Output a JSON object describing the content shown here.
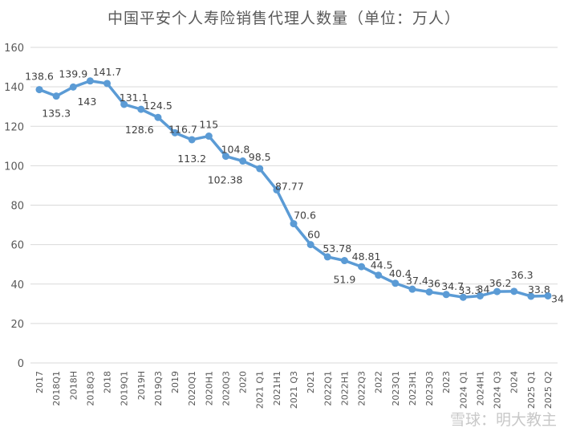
{
  "chart_data": {
    "type": "line",
    "title": "中国平安个人寿险销售代理人数量（单位：万人）",
    "xlabel": "",
    "ylabel": "",
    "ylim": [
      0,
      160
    ],
    "yticks": [
      0,
      20,
      40,
      60,
      80,
      100,
      120,
      140,
      160
    ],
    "grid": true,
    "legend": "none",
    "categories": [
      "2017",
      "2018Q1",
      "2018H",
      "2018Q3",
      "2018",
      "2019Q1",
      "2019H",
      "2019Q3",
      "2019",
      "2020Q1",
      "2020H1",
      "2020Q3",
      "2020",
      "2021 Q1",
      "2021H1",
      "2021 Q3",
      "2021",
      "2022Q1",
      "2022H1",
      "2022Q3",
      "2022",
      "2023Q1",
      "2023H1",
      "2023Q3",
      "2023",
      "2024 Q1",
      "2024H1",
      "2024 Q3",
      "2024",
      "2025 Q1",
      "2025 Q2"
    ],
    "series": [
      {
        "name": "代理人数量",
        "color": "#5b9bd5",
        "values": [
          138.6,
          135.3,
          139.9,
          143,
          141.7,
          131.1,
          128.6,
          124.5,
          116.7,
          113.2,
          115,
          104.8,
          102.38,
          98.5,
          87.77,
          70.6,
          60,
          53.78,
          51.9,
          48.81,
          44.5,
          40.4,
          37.4,
          36,
          34.7,
          33.3,
          34,
          36.2,
          36.3,
          33.8,
          34
        ]
      }
    ]
  },
  "watermark": "雪球：明大教主"
}
